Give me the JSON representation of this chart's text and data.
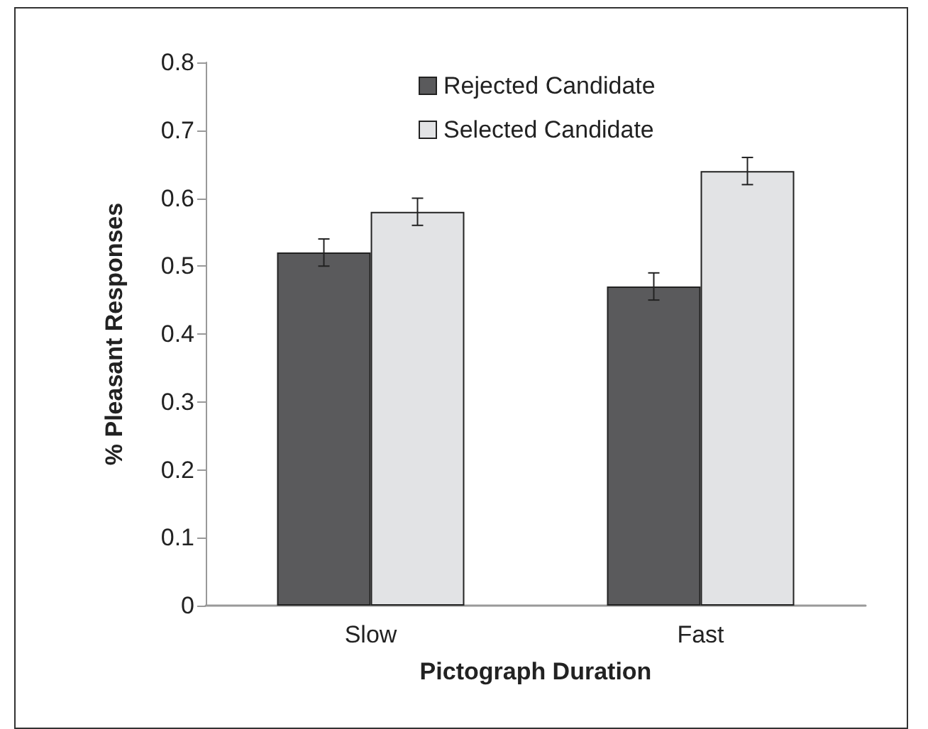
{
  "chart_data": {
    "type": "bar",
    "xlabel": "Pictograph Duration",
    "ylabel": "% Pleasant Responses",
    "categories": [
      "Slow",
      "Fast"
    ],
    "series": [
      {
        "name": "Rejected Candidate",
        "color": "#5a5a5c",
        "values": [
          0.52,
          0.47
        ],
        "errors": [
          0.02,
          0.02
        ]
      },
      {
        "name": "Selected Candidate",
        "color": "#e2e3e5",
        "values": [
          0.58,
          0.64
        ],
        "errors": [
          0.02,
          0.02
        ]
      }
    ],
    "ylim": [
      0,
      0.8
    ],
    "yticks": [
      0,
      0.1,
      0.2,
      0.3,
      0.4,
      0.5,
      0.6,
      0.7,
      0.8
    ],
    "grid": false,
    "legend": "top"
  }
}
